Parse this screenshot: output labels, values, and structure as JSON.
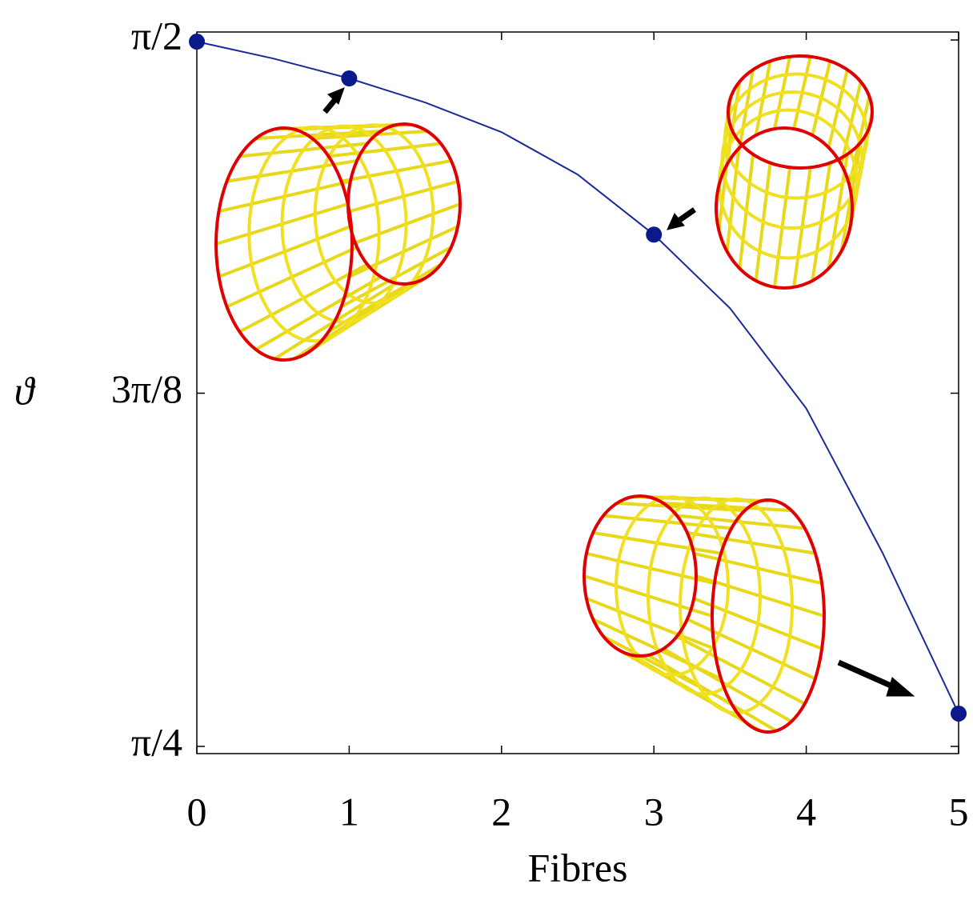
{
  "chart_data": {
    "type": "line",
    "xlabel": "Fibres",
    "ylabel": "ϑ",
    "xlim": [
      0,
      5
    ],
    "xticks": [
      0,
      1,
      2,
      3,
      4,
      5
    ],
    "ylim": [
      0.7774,
      1.5797
    ],
    "yticks": [
      {
        "value": 1.5708,
        "label": "π/2"
      },
      {
        "value": 1.1781,
        "label": "3π/8"
      },
      {
        "value": 0.7854,
        "label": "π/4"
      }
    ],
    "series": [
      {
        "style": "line",
        "color": "#1a2a9a",
        "x": [
          0,
          0.5,
          1,
          1.5,
          2,
          2.5,
          3,
          3.5,
          4,
          4.5,
          5
        ],
        "values": [
          1.569,
          1.5503,
          1.5281,
          1.5013,
          1.4684,
          1.4212,
          1.3544,
          1.2725,
          1.1612,
          1.0009,
          0.8219
        ]
      },
      {
        "style": "markers",
        "color": "#0a1a8a",
        "x": [
          0,
          1,
          3,
          5
        ],
        "values": [
          1.569,
          1.5281,
          1.3544,
          0.8219
        ]
      }
    ]
  }
}
